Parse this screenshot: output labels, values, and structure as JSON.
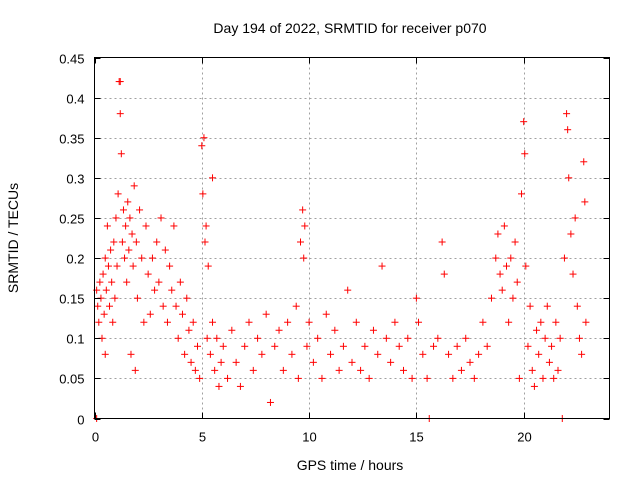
{
  "chart_data": {
    "type": "scatter",
    "title": "Day 194 of 2022, SRMTID for receiver p070",
    "xlabel": "GPS time / hours",
    "ylabel": "SRMTID / TECUs",
    "xlim": [
      0,
      24
    ],
    "ylim": [
      0,
      0.45
    ],
    "xticks": [
      0,
      5,
      10,
      15,
      20
    ],
    "xtick_labels": [
      "0",
      "5",
      "10",
      "15",
      "20"
    ],
    "yticks": [
      0,
      0.05,
      0.1,
      0.15,
      0.2,
      0.25,
      0.3,
      0.35,
      0.4,
      0.45
    ],
    "ytick_labels": [
      "0",
      "0.05",
      "0.1",
      "0.15",
      "0.2",
      "0.25",
      "0.3",
      "0.35",
      "0.4",
      "0.45"
    ],
    "grid": true,
    "marker": "+",
    "color": "#ff0000",
    "series": [
      {
        "name": "SRMTID",
        "points": [
          [
            0.1,
            0.0
          ],
          [
            0.1,
            0.16
          ],
          [
            0.15,
            0.14
          ],
          [
            0.2,
            0.12
          ],
          [
            0.25,
            0.17
          ],
          [
            0.3,
            0.15
          ],
          [
            0.35,
            0.1
          ],
          [
            0.4,
            0.18
          ],
          [
            0.45,
            0.13
          ],
          [
            0.5,
            0.2
          ],
          [
            0.5,
            0.08
          ],
          [
            0.55,
            0.16
          ],
          [
            0.6,
            0.24
          ],
          [
            0.65,
            0.19
          ],
          [
            0.7,
            0.14
          ],
          [
            0.75,
            0.21
          ],
          [
            0.8,
            0.17
          ],
          [
            0.85,
            0.12
          ],
          [
            0.9,
            0.22
          ],
          [
            0.95,
            0.15
          ],
          [
            1.0,
            0.25
          ],
          [
            1.05,
            0.19
          ],
          [
            1.1,
            0.28
          ],
          [
            1.15,
            0.42
          ],
          [
            1.2,
            0.42
          ],
          [
            1.2,
            0.38
          ],
          [
            1.25,
            0.33
          ],
          [
            1.3,
            0.22
          ],
          [
            1.35,
            0.26
          ],
          [
            1.4,
            0.2
          ],
          [
            1.45,
            0.24
          ],
          [
            1.5,
            0.17
          ],
          [
            1.55,
            0.27
          ],
          [
            1.6,
            0.21
          ],
          [
            1.65,
            0.25
          ],
          [
            1.7,
            0.08
          ],
          [
            1.75,
            0.23
          ],
          [
            1.8,
            0.19
          ],
          [
            1.85,
            0.29
          ],
          [
            1.9,
            0.06
          ],
          [
            1.95,
            0.22
          ],
          [
            2.0,
            0.15
          ],
          [
            2.1,
            0.26
          ],
          [
            2.2,
            0.2
          ],
          [
            2.3,
            0.12
          ],
          [
            2.4,
            0.24
          ],
          [
            2.5,
            0.18
          ],
          [
            2.6,
            0.13
          ],
          [
            2.7,
            0.2
          ],
          [
            2.8,
            0.16
          ],
          [
            2.9,
            0.22
          ],
          [
            3.0,
            0.17
          ],
          [
            3.1,
            0.25
          ],
          [
            3.2,
            0.14
          ],
          [
            3.3,
            0.21
          ],
          [
            3.4,
            0.12
          ],
          [
            3.5,
            0.19
          ],
          [
            3.6,
            0.16
          ],
          [
            3.7,
            0.24
          ],
          [
            3.8,
            0.14
          ],
          [
            3.9,
            0.1
          ],
          [
            4.0,
            0.17
          ],
          [
            4.1,
            0.13
          ],
          [
            4.2,
            0.08
          ],
          [
            4.3,
            0.15
          ],
          [
            4.4,
            0.11
          ],
          [
            4.5,
            0.07
          ],
          [
            4.6,
            0.12
          ],
          [
            4.7,
            0.06
          ],
          [
            4.8,
            0.09
          ],
          [
            4.9,
            0.05
          ],
          [
            5.0,
            0.34
          ],
          [
            5.05,
            0.28
          ],
          [
            5.1,
            0.35
          ],
          [
            5.15,
            0.22
          ],
          [
            5.2,
            0.24
          ],
          [
            5.25,
            0.1
          ],
          [
            5.3,
            0.19
          ],
          [
            5.4,
            0.08
          ],
          [
            5.5,
            0.3
          ],
          [
            5.5,
            0.12
          ],
          [
            5.6,
            0.06
          ],
          [
            5.7,
            0.1
          ],
          [
            5.8,
            0.04
          ],
          [
            5.9,
            0.07
          ],
          [
            6.0,
            0.09
          ],
          [
            6.2,
            0.05
          ],
          [
            6.4,
            0.11
          ],
          [
            6.6,
            0.07
          ],
          [
            6.8,
            0.04
          ],
          [
            7.0,
            0.09
          ],
          [
            7.2,
            0.12
          ],
          [
            7.4,
            0.06
          ],
          [
            7.6,
            0.1
          ],
          [
            7.8,
            0.08
          ],
          [
            8.0,
            0.13
          ],
          [
            8.2,
            0.02
          ],
          [
            8.4,
            0.09
          ],
          [
            8.6,
            0.11
          ],
          [
            8.8,
            0.06
          ],
          [
            9.0,
            0.12
          ],
          [
            9.2,
            0.08
          ],
          [
            9.4,
            0.14
          ],
          [
            9.5,
            0.05
          ],
          [
            9.6,
            0.22
          ],
          [
            9.7,
            0.26
          ],
          [
            9.75,
            0.2
          ],
          [
            9.8,
            0.24
          ],
          [
            9.9,
            0.09
          ],
          [
            10.0,
            0.12
          ],
          [
            10.2,
            0.07
          ],
          [
            10.4,
            0.1
          ],
          [
            10.6,
            0.05
          ],
          [
            10.8,
            0.13
          ],
          [
            11.0,
            0.08
          ],
          [
            11.2,
            0.11
          ],
          [
            11.4,
            0.06
          ],
          [
            11.6,
            0.09
          ],
          [
            11.8,
            0.16
          ],
          [
            12.0,
            0.07
          ],
          [
            12.2,
            0.12
          ],
          [
            12.4,
            0.06
          ],
          [
            12.6,
            0.09
          ],
          [
            12.8,
            0.05
          ],
          [
            13.0,
            0.11
          ],
          [
            13.2,
            0.08
          ],
          [
            13.4,
            0.19
          ],
          [
            13.6,
            0.1
          ],
          [
            13.8,
            0.07
          ],
          [
            14.0,
            0.12
          ],
          [
            14.2,
            0.09
          ],
          [
            14.4,
            0.06
          ],
          [
            14.6,
            0.1
          ],
          [
            14.8,
            0.05
          ],
          [
            15.0,
            0.15
          ],
          [
            15.1,
            0.12
          ],
          [
            15.3,
            0.08
          ],
          [
            15.5,
            0.05
          ],
          [
            15.6,
            0.0
          ],
          [
            15.8,
            0.09
          ],
          [
            16.0,
            0.1
          ],
          [
            16.2,
            0.22
          ],
          [
            16.3,
            0.18
          ],
          [
            16.5,
            0.08
          ],
          [
            16.7,
            0.05
          ],
          [
            16.9,
            0.09
          ],
          [
            17.1,
            0.06
          ],
          [
            17.3,
            0.1
          ],
          [
            17.5,
            0.07
          ],
          [
            17.7,
            0.05
          ],
          [
            17.9,
            0.08
          ],
          [
            18.1,
            0.12
          ],
          [
            18.3,
            0.09
          ],
          [
            18.5,
            0.15
          ],
          [
            18.7,
            0.2
          ],
          [
            18.8,
            0.23
          ],
          [
            18.9,
            0.18
          ],
          [
            19.0,
            0.16
          ],
          [
            19.1,
            0.24
          ],
          [
            19.2,
            0.19
          ],
          [
            19.3,
            0.12
          ],
          [
            19.4,
            0.2
          ],
          [
            19.5,
            0.15
          ],
          [
            19.6,
            0.22
          ],
          [
            19.7,
            0.17
          ],
          [
            19.8,
            0.05
          ],
          [
            19.9,
            0.28
          ],
          [
            20.0,
            0.37
          ],
          [
            20.05,
            0.33
          ],
          [
            20.1,
            0.19
          ],
          [
            20.2,
            0.09
          ],
          [
            20.3,
            0.14
          ],
          [
            20.4,
            0.06
          ],
          [
            20.5,
            0.04
          ],
          [
            20.6,
            0.11
          ],
          [
            20.7,
            0.08
          ],
          [
            20.8,
            0.12
          ],
          [
            20.9,
            0.05
          ],
          [
            21.0,
            0.1
          ],
          [
            21.1,
            0.14
          ],
          [
            21.2,
            0.07
          ],
          [
            21.3,
            0.09
          ],
          [
            21.4,
            0.05
          ],
          [
            21.5,
            0.12
          ],
          [
            21.6,
            0.06
          ],
          [
            21.7,
            0.1
          ],
          [
            21.8,
            0.0
          ],
          [
            21.9,
            0.2
          ],
          [
            22.0,
            0.38
          ],
          [
            22.05,
            0.36
          ],
          [
            22.1,
            0.3
          ],
          [
            22.2,
            0.23
          ],
          [
            22.3,
            0.18
          ],
          [
            22.4,
            0.25
          ],
          [
            22.5,
            0.14
          ],
          [
            22.6,
            0.1
          ],
          [
            22.7,
            0.08
          ],
          [
            22.8,
            0.32
          ],
          [
            22.85,
            0.27
          ],
          [
            22.9,
            0.12
          ]
        ]
      }
    ]
  }
}
